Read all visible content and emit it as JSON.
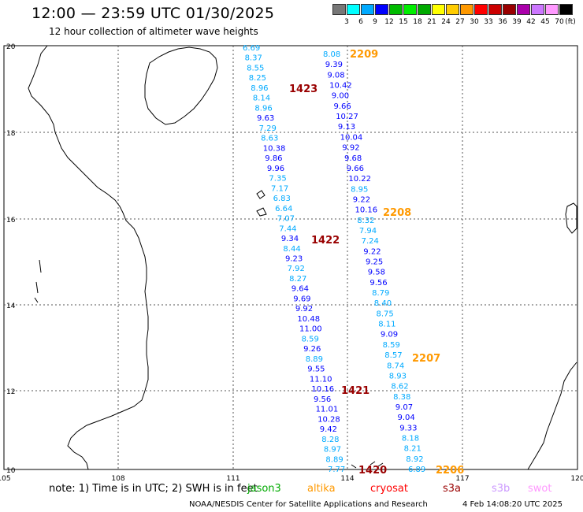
{
  "title": "12:00 — 23:59 UTC 01/30/2025",
  "subtitle": "12 hour collection of altimeter wave heights",
  "legend": {
    "unit": "(ft)",
    "colors": [
      "#777777",
      "#00ffff",
      "#00aaff",
      "#0000ff",
      "#00bb00",
      "#00ee00",
      "#00aa00",
      "#ffff00",
      "#ffcc00",
      "#ff9900",
      "#ff0000",
      "#cc0000",
      "#990000",
      "#aa00aa",
      "#cc77ff",
      "#ff99ff",
      "#000000"
    ],
    "labels": [
      "3",
      "6",
      "9",
      "12",
      "15",
      "18",
      "21",
      "24",
      "27",
      "30",
      "33",
      "36",
      "39",
      "42",
      "45",
      "70"
    ]
  },
  "axes": {
    "x_ticks": [
      "105",
      "108",
      "111",
      "114",
      "117",
      "120"
    ],
    "y_ticks": [
      "20",
      "18",
      "16",
      "14",
      "12",
      "10"
    ]
  },
  "track_labels": [
    {
      "text": "2209",
      "color": "#ff9900"
    },
    {
      "text": "1423",
      "color": "#990000"
    },
    {
      "text": "2208",
      "color": "#ff9900"
    },
    {
      "text": "1422",
      "color": "#990000"
    },
    {
      "text": "2207",
      "color": "#ff9900"
    },
    {
      "text": "1421",
      "color": "#990000"
    },
    {
      "text": "1420",
      "color": "#990000"
    },
    {
      "text": "2206",
      "color": "#ff9900"
    }
  ],
  "passes": {
    "track_1423": [
      "6.69",
      "8.37",
      "8.55",
      "8.25",
      "8.96",
      "8.14",
      "8.96",
      "9.63",
      "7.29",
      "8.63",
      "10.38",
      "9.86",
      "9.96",
      "7.35",
      "7.17",
      "6.83",
      "6.64",
      "7.07",
      "7.44",
      "9.34",
      "8.44",
      "9.23",
      "7.92",
      "8.27",
      "9.64",
      "9.69",
      "9.92",
      "10.48",
      "11.00",
      "8.59",
      "9.26",
      "8.89",
      "9.55",
      "11.10",
      "10.16",
      "9.56",
      "11.01",
      "10.28",
      "9.42",
      "8.28",
      "8.97",
      "8.89",
      "7.77"
    ],
    "track_2209": [
      "8.08",
      "9.39",
      "9.08",
      "10.42",
      "9.00",
      "9.66",
      "10.27",
      "9.13",
      "10.04",
      "9.92",
      "9.68",
      "9.66",
      "10.22",
      "8.95",
      "9.22",
      "10.16",
      "8.32",
      "7.94",
      "7.24",
      "9.22",
      "9.25",
      "9.58",
      "9.56",
      "8.79",
      "8.40",
      "8.75",
      "8.11",
      "9.09",
      "8.59",
      "8.57",
      "8.74",
      "8.93",
      "8.62",
      "8.38",
      "9.07",
      "9.04",
      "9.33",
      "8.18",
      "8.21",
      "8.92",
      "6.89"
    ]
  },
  "notes": {
    "prefix": "note:  1) Time is in UTC; 2) SWH is in feet",
    "sats": [
      {
        "text": "jason3",
        "color": "#00aa00"
      },
      {
        "text": "altika",
        "color": "#ff9900"
      },
      {
        "text": "cryosat",
        "color": "#ff0000"
      },
      {
        "text": "s3a",
        "color": "#990000"
      },
      {
        "text": "s3b",
        "color": "#cc99ff"
      },
      {
        "text": "swot",
        "color": "#ff99ff"
      }
    ]
  },
  "credit": "NOAA/NESDIS Center for Satellite Applications and Research",
  "timestamp": "4 Feb 14:08:20 UTC 2025"
}
